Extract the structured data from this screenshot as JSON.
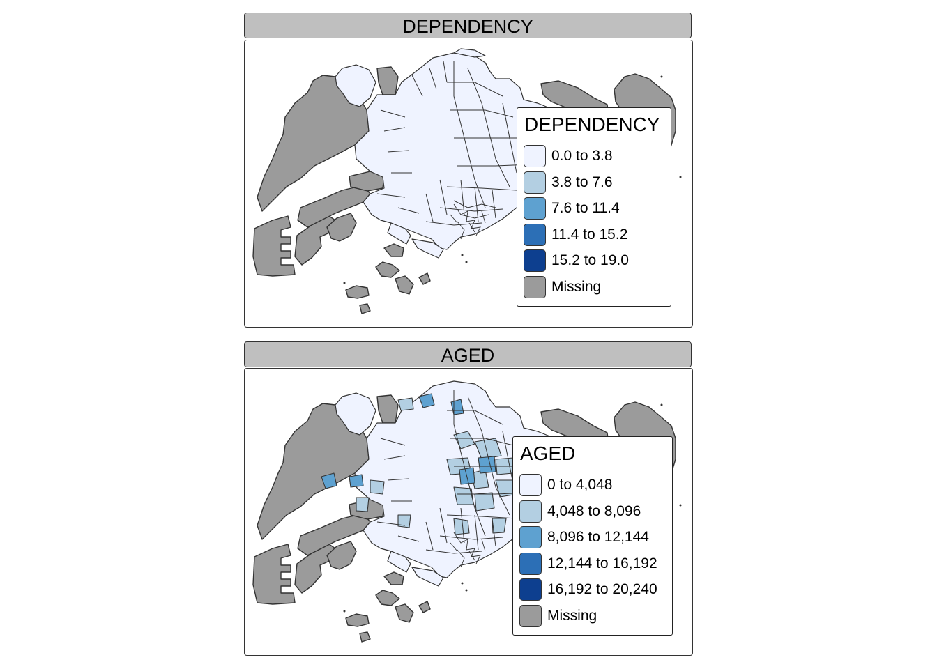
{
  "colors": {
    "missing": "#999999",
    "class_1": "#eff3ff",
    "class_2": "#bdd7e7",
    "class_3": "#6baed6",
    "class_4": "#3182bd",
    "class_5": "#08519c",
    "border": "#333333"
  },
  "panels": [
    {
      "title": "DEPENDENCY",
      "legend": {
        "title": "DEPENDENCY",
        "items": [
          {
            "label": "0.0 to 3.8",
            "color": "#eff3ff"
          },
          {
            "label": "3.8 to 7.6",
            "color": "#b3cfe2"
          },
          {
            "label": "7.6 to 11.4",
            "color": "#5ea1d0"
          },
          {
            "label": "11.4 to 15.2",
            "color": "#2c6fb6"
          },
          {
            "label": "15.2 to 19.0",
            "color": "#0d3f8f"
          },
          {
            "label": "Missing",
            "color": "#9b9b9b"
          }
        ]
      }
    },
    {
      "title": "AGED",
      "legend": {
        "title": "AGED",
        "items": [
          {
            "label": "0 to 4,048",
            "color": "#eff3ff"
          },
          {
            "label": "4,048 to 8,096",
            "color": "#b3cfe2"
          },
          {
            "label": "8,096 to 12,144",
            "color": "#5ea1d0"
          },
          {
            "label": "12,144 to 16,192",
            "color": "#2c6fb6"
          },
          {
            "label": "16,192 to 20,240",
            "color": "#0d3f8f"
          },
          {
            "label": "Missing",
            "color": "#9b9b9b"
          }
        ]
      }
    }
  ]
}
